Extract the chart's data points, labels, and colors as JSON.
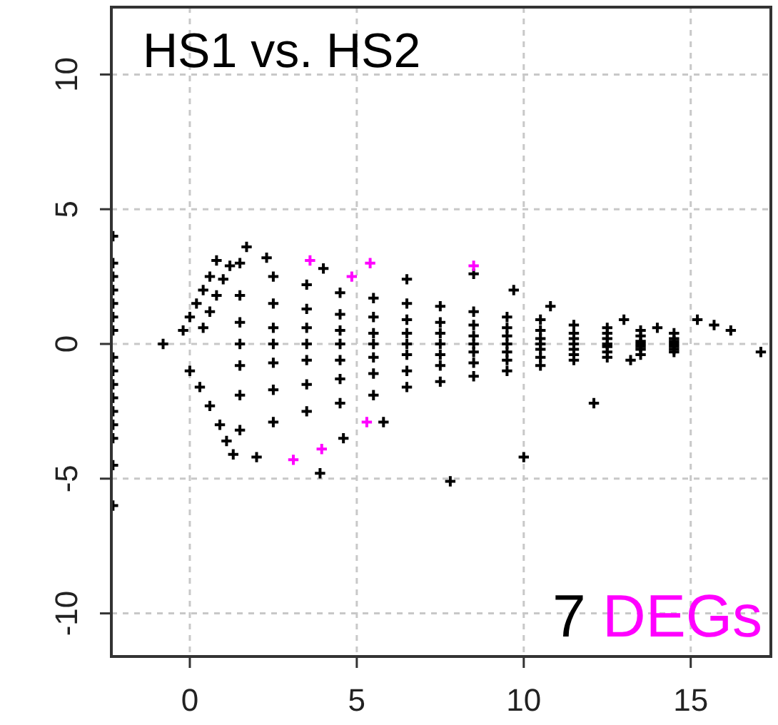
{
  "chart_data": {
    "type": "scatter",
    "marker": "cross",
    "grid": true,
    "xlim": [
      -2.35,
      17.4
    ],
    "ylim": [
      -11.6,
      12.5
    ],
    "xticks": [
      0,
      5,
      10,
      15
    ],
    "yticks": [
      -10,
      -5,
      0,
      5,
      10
    ],
    "annotations": [
      "HS1 vs. HS2",
      "7 DEGs"
    ],
    "series": [
      {
        "color": "#000000",
        "x": [
          -2.3,
          -2.3,
          -2.3,
          -2.3,
          -2.3,
          -2.3,
          -2.3,
          -2.3,
          -2.3,
          -2.3,
          -2.3,
          -2.3,
          -2.3,
          -2.3,
          -2.3,
          -2.3,
          -0.8,
          -0.2,
          0,
          0.2,
          0.4,
          0.6,
          0.8,
          0.4,
          0.6,
          0.8,
          1,
          1.2,
          0,
          0.3,
          0.6,
          0.9,
          1.1,
          1.3,
          1.5,
          1.5,
          1.5,
          1.5,
          1.5,
          1.5,
          1.5,
          2.5,
          2.5,
          2.5,
          2.5,
          2.5,
          2.5,
          2.5,
          3.5,
          3.5,
          3.5,
          3.5,
          3.5,
          3.5,
          3.5,
          4.5,
          4.5,
          4.5,
          4.5,
          4.5,
          4.5,
          4.5,
          5.5,
          5.5,
          5.5,
          5.5,
          5.5,
          5.5,
          5.5,
          6.5,
          6.5,
          6.5,
          6.5,
          6.5,
          6.5,
          6.5,
          7.5,
          7.5,
          7.5,
          7.5,
          7.5,
          7.5,
          7.5,
          8.5,
          8.5,
          8.5,
          8.5,
          8.5,
          8.5,
          8.5,
          9.5,
          9.5,
          9.5,
          9.5,
          9.5,
          9.5,
          9.5,
          10.5,
          10.5,
          10.5,
          10.5,
          10.5,
          10.5,
          10.5,
          11.5,
          11.5,
          11.5,
          11.5,
          11.5,
          11.5,
          11.5,
          12.5,
          12.5,
          12.5,
          12.5,
          12.5,
          12.5,
          12.5,
          13.5,
          13.5,
          13.5,
          13.5,
          13.5,
          13.5,
          13.5,
          14.5,
          14.5,
          14.5,
          14.5,
          14.5,
          14.5,
          14.5,
          1.7,
          2.3,
          4,
          6.5,
          8.5,
          9.7,
          10.8,
          13,
          14,
          15.2,
          15.7,
          16.2,
          17.1,
          13.2,
          10,
          7.8,
          3.9,
          2,
          4.6,
          5.8,
          12.1
        ],
        "values": [
          4,
          3,
          2.5,
          2,
          1.5,
          1,
          0.5,
          -0.5,
          -1,
          -1.5,
          -2,
          -2.5,
          -3,
          -3.5,
          -4.5,
          -6,
          0,
          0.5,
          1,
          1.5,
          2,
          2.5,
          3.1,
          0.6,
          1.2,
          1.8,
          2.4,
          2.9,
          -1,
          -1.6,
          -2.3,
          -3,
          -3.6,
          -4.1,
          3,
          1.8,
          0.8,
          0,
          -0.8,
          -1.9,
          -3.2,
          2.5,
          1.5,
          0.6,
          0,
          -0.7,
          -1.7,
          -2.9,
          2.2,
          1.3,
          0.6,
          0,
          -0.6,
          -1.5,
          -2.5,
          1.9,
          1.1,
          0.5,
          0,
          -0.6,
          -1.3,
          -2.2,
          1.7,
          1,
          0.4,
          0,
          -0.5,
          -1.1,
          -1.9,
          1.5,
          0.9,
          0.4,
          0,
          -0.4,
          -1,
          -1.6,
          1.4,
          0.8,
          0.4,
          0,
          -0.4,
          -0.8,
          -1.4,
          1.2,
          0.7,
          0.3,
          0,
          -0.3,
          -0.7,
          -1.2,
          1,
          0.6,
          0.3,
          0,
          -0.3,
          -0.6,
          -1,
          0.9,
          0.5,
          0.2,
          0,
          -0.2,
          -0.5,
          -0.8,
          0.7,
          0.4,
          0.2,
          0,
          -0.2,
          -0.4,
          -0.6,
          0.6,
          0.4,
          0.2,
          0,
          -0.1,
          -0.3,
          -0.5,
          0.5,
          0.3,
          0.1,
          0,
          -0.1,
          -0.2,
          -0.4,
          0.4,
          0.2,
          0.1,
          0,
          -0.1,
          -0.2,
          -0.3,
          3.6,
          3.2,
          2.8,
          2.4,
          2.6,
          2,
          1.4,
          0.9,
          0.6,
          0.9,
          0.7,
          0.5,
          -0.3,
          -0.6,
          -4.2,
          -5.1,
          -4.8,
          -4.2,
          -3.5,
          -2.9,
          -2.2
        ]
      },
      {
        "color": "#ff00ff",
        "x": [
          3.6,
          4.85,
          5.4,
          8.5,
          3.1,
          3.95,
          5.3
        ],
        "values": [
          3.1,
          2.5,
          3,
          2.9,
          -4.3,
          -3.9,
          -2.9
        ]
      }
    ]
  }
}
